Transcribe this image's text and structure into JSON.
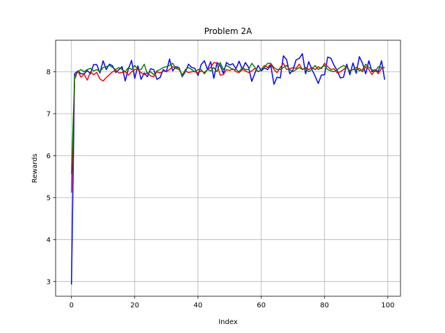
{
  "chart_data": {
    "type": "line",
    "title": "Problem 2A",
    "xlabel": "Index",
    "ylabel": "Rewards",
    "xlim": [
      -5,
      104
    ],
    "ylim": [
      2.65,
      8.75
    ],
    "xticks": [
      0,
      20,
      40,
      60,
      80,
      100
    ],
    "yticks": [
      3,
      4,
      5,
      6,
      7,
      8
    ],
    "grid": true,
    "series": [
      {
        "color": "#0000ff",
        "values": [
          2.93,
          7.95,
          8.02,
          7.95,
          7.95,
          8.03,
          7.95,
          8.17,
          8.17,
          7.97,
          8.26,
          8.05,
          8.18,
          8.14,
          7.98,
          8.05,
          8.12,
          7.78,
          8.07,
          8.27,
          7.84,
          8.14,
          7.82,
          7.97,
          7.88,
          8.07,
          8.05,
          7.82,
          7.86,
          8.05,
          8.0,
          8.3,
          8.02,
          8.12,
          8.1,
          7.88,
          8.0,
          8.18,
          8.1,
          8.08,
          7.91,
          8.17,
          8.26,
          8.05,
          8.24,
          7.84,
          8.22,
          8.15,
          7.96,
          8.22,
          8.16,
          8.19,
          8.07,
          8.25,
          8.05,
          8.22,
          8.1,
          7.77,
          7.97,
          8.15,
          8.02,
          8.09,
          8.05,
          8.15,
          7.7,
          7.87,
          7.85,
          8.38,
          8.29,
          7.95,
          8.04,
          8.28,
          8.32,
          8.43,
          7.95,
          8.24,
          8.05,
          7.9,
          7.72,
          7.92,
          7.93,
          8.35,
          8.32,
          8.15,
          8.03,
          7.85,
          7.87,
          8.18,
          7.93,
          8.21,
          7.96,
          8.36,
          8.2,
          7.95,
          8.26,
          8.0,
          8.05,
          8.0,
          8.26,
          7.81
        ]
      },
      {
        "color": "#ff0000",
        "values": [
          5.12,
          7.82,
          8.02,
          7.87,
          7.94,
          7.8,
          8.0,
          7.93,
          7.98,
          7.83,
          7.78,
          7.86,
          7.93,
          8.0,
          8.03,
          7.97,
          7.98,
          8.0,
          7.92,
          8.0,
          8.05,
          8.05,
          7.98,
          7.93,
          7.98,
          7.9,
          7.88,
          8.0,
          7.97,
          8.02,
          8.0,
          8.05,
          8.12,
          8.08,
          8.05,
          7.93,
          8.02,
          7.98,
          8.0,
          8.0,
          7.97,
          8.02,
          7.98,
          8.05,
          8.1,
          8.22,
          8.2,
          7.92,
          7.93,
          8.05,
          8.03,
          8.07,
          8.0,
          7.98,
          8.05,
          8.02,
          7.98,
          8.02,
          8.08,
          8.0,
          8.05,
          8.15,
          8.1,
          8.18,
          8.05,
          7.98,
          8.1,
          8.2,
          8.05,
          8.07,
          8.1,
          8.08,
          8.18,
          8.05,
          8.1,
          8.05,
          8.1,
          8.05,
          8.12,
          8.07,
          8.2,
          8.12,
          8.05,
          8.07,
          7.97,
          8.0,
          8.05,
          8.12,
          8.02,
          8.05,
          8.05,
          8.08,
          8.0,
          8.12,
          8.05,
          7.93,
          8.05,
          7.95,
          8.08,
          8.1
        ]
      },
      {
        "color": "#008000",
        "values": [
          5.57,
          7.88,
          8.0,
          8.05,
          8.0,
          8.05,
          8.08,
          8.02,
          8.05,
          8.0,
          8.1,
          8.12,
          8.15,
          8.1,
          8.05,
          8.1,
          8.05,
          8.0,
          8.1,
          8.05,
          8.15,
          8.05,
          8.05,
          8.18,
          7.95,
          8.0,
          7.93,
          8.02,
          8.05,
          8.1,
          8.12,
          8.15,
          8.2,
          8.08,
          8.1,
          7.9,
          8.05,
          8.1,
          8.05,
          8.0,
          8.05,
          8.05,
          7.95,
          8.05,
          8.02,
          8.1,
          8.0,
          8.22,
          8.05,
          8.15,
          8.1,
          8.05,
          8.05,
          8.0,
          8.1,
          8.05,
          8.05,
          8.2,
          8.1,
          8.0,
          8.05,
          8.1,
          8.2,
          8.2,
          8.1,
          8.05,
          8.05,
          8.1,
          8.15,
          8.05,
          8.0,
          8.05,
          8.1,
          8.05,
          8.08,
          8.0,
          8.05,
          8.15,
          8.05,
          8.1,
          8.15,
          8.05,
          8.02,
          8.0,
          8.05,
          8.1,
          8.15,
          8.1,
          8.02,
          8.05,
          8.1,
          8.02,
          8.05,
          8.18,
          8.1,
          8.05,
          8.0,
          8.12,
          8.1,
          8.1
        ]
      }
    ]
  }
}
